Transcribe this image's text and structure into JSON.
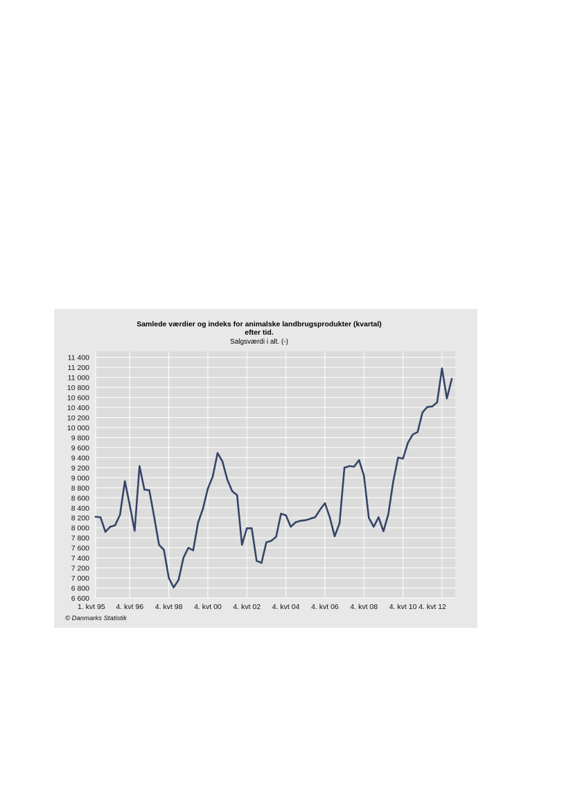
{
  "chart_data": {
    "type": "line",
    "title_lines": [
      "Samlede værdier og indeks for animalske landbrugsprodukter (kvartal)",
      "efter tid."
    ],
    "subtitle": "Salgsværdi i alt. (-)",
    "source": "© Danmarks Statistik",
    "xlabel": "",
    "ylabel": "",
    "ylim": [
      6600,
      11400
    ],
    "y_ticks": [
      6600,
      6800,
      7000,
      7200,
      7400,
      7600,
      7800,
      8000,
      8200,
      8400,
      8600,
      8800,
      9000,
      9200,
      9400,
      9600,
      9800,
      10000,
      10200,
      10400,
      10600,
      10800,
      11000,
      11200,
      11400
    ],
    "y_tick_labels": [
      "6 600",
      "6 800",
      "7 000",
      "7 200",
      "7 400",
      "7 600",
      "7 800",
      "8 000",
      "8 200",
      "8 400",
      "8 600",
      "8 800",
      "9 000",
      "9 200",
      "9 400",
      "9 600",
      "9 800",
      "10 000",
      "10 200",
      "10 400",
      "10 600",
      "10 800",
      "11 000",
      "11 200",
      "11 400"
    ],
    "x_ticks": [
      {
        "index": 0,
        "label": "1. kvt  95"
      },
      {
        "index": 7,
        "label": "4. kvt  96"
      },
      {
        "index": 15,
        "label": "4. kvt  98"
      },
      {
        "index": 23,
        "label": "4. kvt  00"
      },
      {
        "index": 31,
        "label": "4. kvt  02"
      },
      {
        "index": 39,
        "label": "4. kvt  04"
      },
      {
        "index": 47,
        "label": "4. kvt  06"
      },
      {
        "index": 55,
        "label": "4. kvt  08"
      },
      {
        "index": 63,
        "label": "4. kvt  10"
      },
      {
        "index": 71,
        "label": "4. kvt  12"
      }
    ],
    "series": [
      {
        "values": [
          8220,
          8210,
          7920,
          8020,
          8050,
          8260,
          8930,
          8450,
          7940,
          9230,
          8760,
          8750,
          8220,
          7660,
          7560,
          7000,
          6810,
          6960,
          7400,
          7600,
          7550,
          8100,
          8380,
          8780,
          9020,
          9490,
          9320,
          8960,
          8730,
          8650,
          7660,
          7990,
          7990,
          7340,
          7300,
          7710,
          7740,
          7820,
          8280,
          8250,
          8020,
          8110,
          8140,
          8150,
          8180,
          8210,
          8360,
          8490,
          8210,
          7830,
          8090,
          9200,
          9230,
          9220,
          9350,
          9040,
          8200,
          8020,
          8210,
          7930,
          8270,
          8920,
          9400,
          9380,
          9690,
          9860,
          9910,
          10300,
          10410,
          10420,
          10500,
          11180,
          10580,
          10970
        ]
      }
    ],
    "colors": {
      "line": "#344468",
      "panel_background": "#e8e8e8",
      "plot_background": "#dcdcdc",
      "grid": "#ffffff"
    },
    "grid": true,
    "legend": "none"
  }
}
